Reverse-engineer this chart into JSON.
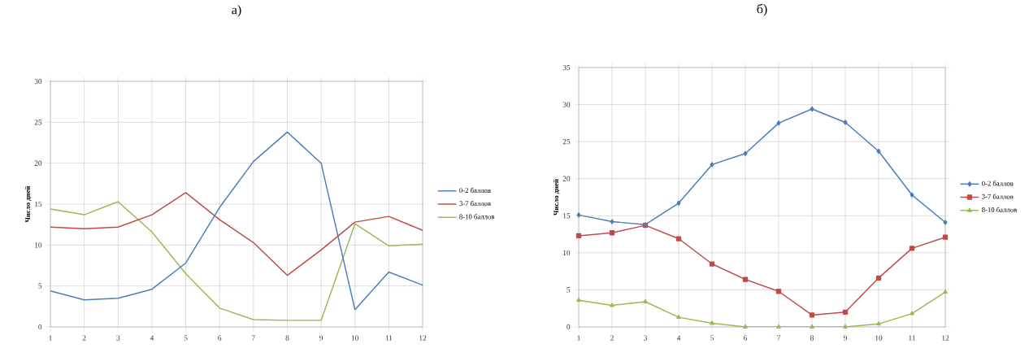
{
  "chart_data": [
    {
      "type": "line",
      "title": "а)",
      "ylabel": "Число дней",
      "categories": [
        "1",
        "2",
        "3",
        "4",
        "5",
        "6",
        "7",
        "8",
        "9",
        "10",
        "11",
        "12"
      ],
      "ylim": [
        0,
        30
      ],
      "yticks": [
        0,
        5,
        10,
        15,
        20,
        25,
        30
      ],
      "grid": true,
      "legend": "right",
      "marker": "none",
      "series": [
        {
          "name": "0-2 баллов",
          "color": "#4a7ebb",
          "values": [
            4.4,
            3.3,
            3.5,
            4.6,
            7.8,
            14.6,
            20.2,
            23.8,
            20.0,
            2.1,
            6.7,
            5.1
          ]
        },
        {
          "name": "3-7 баллов",
          "color": "#be4b48",
          "values": [
            12.2,
            12.0,
            12.2,
            13.7,
            16.4,
            13.1,
            10.3,
            6.3,
            9.4,
            12.8,
            13.5,
            11.8
          ]
        },
        {
          "name": "8-10 баллов",
          "color": "#98b954",
          "values": [
            14.4,
            13.7,
            15.3,
            11.6,
            6.5,
            2.3,
            0.9,
            0.8,
            0.8,
            12.6,
            9.9,
            10.1
          ]
        }
      ]
    },
    {
      "type": "line",
      "title": "б)",
      "ylabel": "Число дней",
      "categories": [
        "1",
        "2",
        "3",
        "4",
        "5",
        "6",
        "7",
        "8",
        "9",
        "10",
        "11",
        "12"
      ],
      "ylim": [
        0,
        35
      ],
      "yticks": [
        0,
        5,
        10,
        15,
        20,
        25,
        30,
        35
      ],
      "grid": true,
      "legend": "right",
      "series": [
        {
          "name": "0-2 баллов",
          "color": "#4a7ebb",
          "marker": "diamond",
          "values": [
            15.1,
            14.2,
            13.8,
            16.7,
            21.9,
            23.4,
            27.5,
            29.4,
            27.6,
            23.7,
            17.8,
            14.1
          ]
        },
        {
          "name": "3-7 баллов",
          "color": "#be4b48",
          "marker": "square",
          "values": [
            12.3,
            12.7,
            13.7,
            11.9,
            8.5,
            6.4,
            4.8,
            1.6,
            2.0,
            6.6,
            10.6,
            12.1
          ]
        },
        {
          "name": "8-10 баллов",
          "color": "#98b954",
          "marker": "triangle",
          "values": [
            3.6,
            2.9,
            3.4,
            1.3,
            0.5,
            0.0,
            0.0,
            0.0,
            0.0,
            0.4,
            1.8,
            4.7
          ]
        }
      ]
    }
  ]
}
